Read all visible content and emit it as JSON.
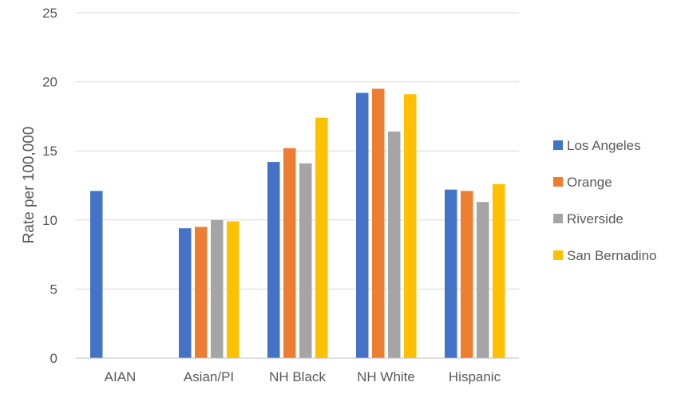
{
  "chart_data": {
    "type": "bar",
    "title": "",
    "xlabel": "",
    "ylabel": "Rate per 100,000",
    "ylim": [
      0,
      25
    ],
    "yticks": [
      0,
      5,
      10,
      15,
      20,
      25
    ],
    "grid": true,
    "legend_position": "right",
    "categories": [
      "AIAN",
      "Asian/PI",
      "NH Black",
      "NH White",
      "Hispanic"
    ],
    "series": [
      {
        "name": "Los Angeles",
        "color": "#4472C4",
        "values": [
          12.1,
          9.4,
          14.2,
          19.2,
          12.2
        ]
      },
      {
        "name": "Orange",
        "color": "#ED7D31",
        "values": [
          null,
          9.5,
          15.2,
          19.5,
          12.1
        ]
      },
      {
        "name": "Riverside",
        "color": "#A5A5A5",
        "values": [
          null,
          10.0,
          14.1,
          16.4,
          11.3
        ]
      },
      {
        "name": "San Bernadino",
        "color": "#FFC000",
        "values": [
          null,
          9.9,
          17.4,
          19.1,
          12.6
        ]
      }
    ]
  }
}
